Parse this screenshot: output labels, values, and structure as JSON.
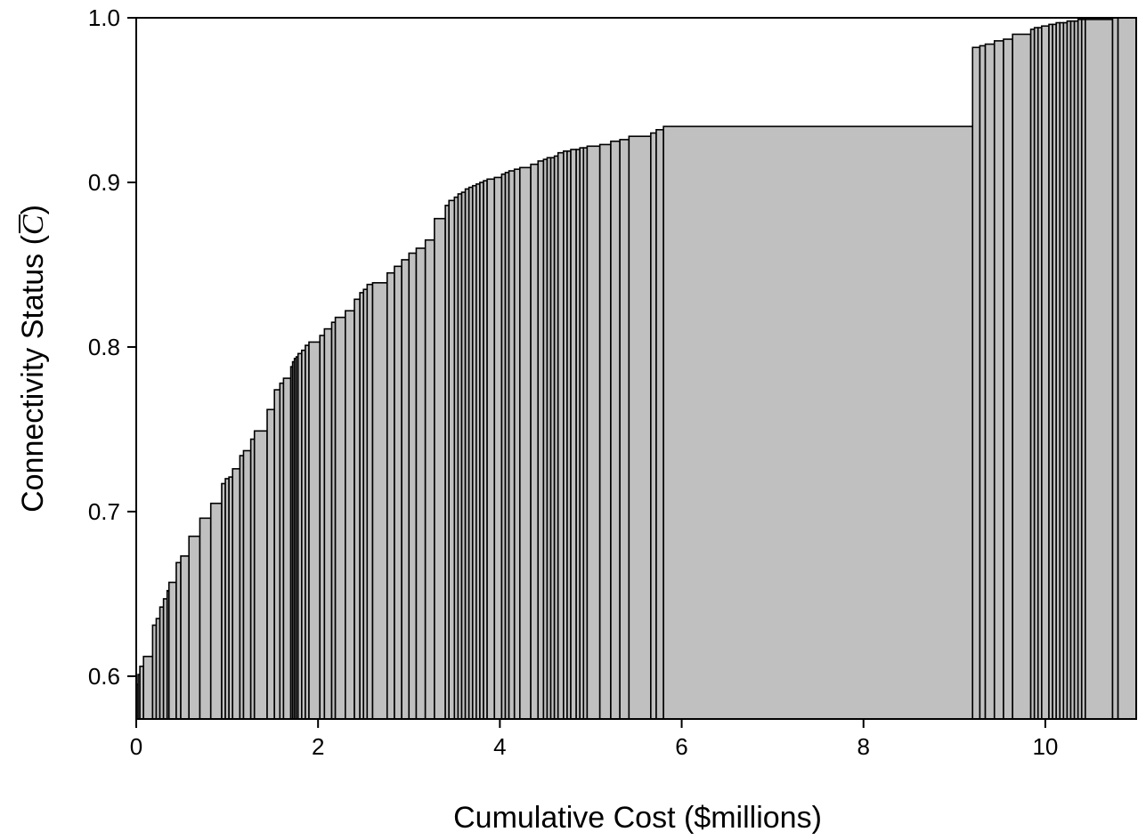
{
  "chart_data": {
    "type": "bar",
    "style": "step-histogram",
    "xlabel": "Cumulative Cost ($millions)",
    "ylabel_prefix": "Connectivity Status (",
    "ylabel_symbol": "C",
    "ylabel_suffix": ")",
    "xlim": [
      0,
      11
    ],
    "ylim": [
      0.574,
      1.0
    ],
    "x_ticks": [
      0,
      2,
      4,
      6,
      8,
      10
    ],
    "y_ticks": [
      0.6,
      0.7,
      0.8,
      0.9,
      1.0
    ],
    "x_tick_labels": [
      "0",
      "2",
      "4",
      "6",
      "8",
      "10"
    ],
    "y_tick_labels": [
      "0.6",
      "0.7",
      "0.8",
      "0.9",
      "1.0"
    ],
    "grid": false,
    "bar_color": "#c0c0c0",
    "edge_color": "#000000",
    "steps": [
      [
        0.0,
        0.595
      ],
      [
        0.02,
        0.601
      ],
      [
        0.04,
        0.606
      ],
      [
        0.08,
        0.612
      ],
      [
        0.18,
        0.631
      ],
      [
        0.22,
        0.635
      ],
      [
        0.26,
        0.642
      ],
      [
        0.3,
        0.647
      ],
      [
        0.34,
        0.652
      ],
      [
        0.36,
        0.657
      ],
      [
        0.44,
        0.669
      ],
      [
        0.49,
        0.673
      ],
      [
        0.58,
        0.685
      ],
      [
        0.7,
        0.696
      ],
      [
        0.82,
        0.705
      ],
      [
        0.94,
        0.717
      ],
      [
        0.98,
        0.72
      ],
      [
        1.02,
        0.721
      ],
      [
        1.06,
        0.726
      ],
      [
        1.14,
        0.734
      ],
      [
        1.18,
        0.737
      ],
      [
        1.26,
        0.744
      ],
      [
        1.3,
        0.749
      ],
      [
        1.44,
        0.762
      ],
      [
        1.52,
        0.774
      ],
      [
        1.58,
        0.778
      ],
      [
        1.62,
        0.781
      ],
      [
        1.7,
        0.788
      ],
      [
        1.72,
        0.791
      ],
      [
        1.74,
        0.793
      ],
      [
        1.76,
        0.794
      ],
      [
        1.78,
        0.796
      ],
      [
        1.82,
        0.798
      ],
      [
        1.86,
        0.801
      ],
      [
        1.9,
        0.803
      ],
      [
        2.02,
        0.807
      ],
      [
        2.07,
        0.811
      ],
      [
        2.15,
        0.815
      ],
      [
        2.19,
        0.818
      ],
      [
        2.3,
        0.822
      ],
      [
        2.4,
        0.829
      ],
      [
        2.46,
        0.833
      ],
      [
        2.5,
        0.835
      ],
      [
        2.54,
        0.838
      ],
      [
        2.6,
        0.839
      ],
      [
        2.76,
        0.845
      ],
      [
        2.84,
        0.849
      ],
      [
        2.92,
        0.853
      ],
      [
        3.0,
        0.857
      ],
      [
        3.08,
        0.86
      ],
      [
        3.18,
        0.865
      ],
      [
        3.28,
        0.878
      ],
      [
        3.4,
        0.886
      ],
      [
        3.44,
        0.889
      ],
      [
        3.5,
        0.891
      ],
      [
        3.54,
        0.893
      ],
      [
        3.58,
        0.894
      ],
      [
        3.62,
        0.896
      ],
      [
        3.66,
        0.897
      ],
      [
        3.7,
        0.898
      ],
      [
        3.74,
        0.899
      ],
      [
        3.78,
        0.9
      ],
      [
        3.82,
        0.901
      ],
      [
        3.86,
        0.902
      ],
      [
        3.94,
        0.903
      ],
      [
        4.02,
        0.905
      ],
      [
        4.06,
        0.906
      ],
      [
        4.1,
        0.907
      ],
      [
        4.16,
        0.908
      ],
      [
        4.22,
        0.909
      ],
      [
        4.34,
        0.911
      ],
      [
        4.42,
        0.913
      ],
      [
        4.48,
        0.914
      ],
      [
        4.52,
        0.915
      ],
      [
        4.56,
        0.915
      ],
      [
        4.6,
        0.916
      ],
      [
        4.64,
        0.918
      ],
      [
        4.7,
        0.919
      ],
      [
        4.74,
        0.919
      ],
      [
        4.78,
        0.92
      ],
      [
        4.84,
        0.92
      ],
      [
        4.88,
        0.921
      ],
      [
        4.92,
        0.921
      ],
      [
        4.96,
        0.922
      ],
      [
        5.1,
        0.923
      ],
      [
        5.22,
        0.925
      ],
      [
        5.32,
        0.926
      ],
      [
        5.42,
        0.928
      ],
      [
        5.66,
        0.93
      ],
      [
        5.72,
        0.932
      ],
      [
        5.8,
        0.934
      ],
      [
        9.2,
        0.982
      ],
      [
        9.28,
        0.983
      ],
      [
        9.34,
        0.984
      ],
      [
        9.44,
        0.986
      ],
      [
        9.54,
        0.987
      ],
      [
        9.64,
        0.99
      ],
      [
        9.84,
        0.993
      ],
      [
        9.88,
        0.994
      ],
      [
        9.92,
        0.994
      ],
      [
        9.96,
        0.995
      ],
      [
        10.04,
        0.996
      ],
      [
        10.08,
        0.996
      ],
      [
        10.12,
        0.997
      ],
      [
        10.16,
        0.997
      ],
      [
        10.2,
        0.997
      ],
      [
        10.24,
        0.998
      ],
      [
        10.28,
        0.998
      ],
      [
        10.32,
        0.998
      ],
      [
        10.36,
        0.999
      ],
      [
        10.4,
        0.999
      ],
      [
        10.44,
        0.999
      ],
      [
        10.74,
        1.0
      ],
      [
        10.8,
        1.0
      ]
    ],
    "x_end": 11.0
  }
}
